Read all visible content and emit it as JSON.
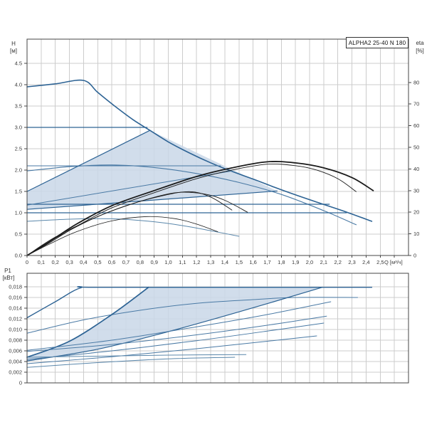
{
  "title": "ALPHA2 25-40 N 180",
  "labels": {
    "h": "H",
    "h_unit": "[м]",
    "eta": "eta",
    "eta_unit": "[%]",
    "p1": "P1",
    "p1_unit": "[кВт]",
    "q": "Q [м³/ч]"
  },
  "colors": {
    "blue_main": "#2d6394",
    "blue_light": "#4a7aa5",
    "blue_pale": "#5a87ab",
    "eta_black": "#1b1b1b",
    "region_fill": "#c9d7e8",
    "grid": "#cccccc",
    "border": "#444444",
    "text": "#3a3a3a"
  },
  "chart_data": [
    {
      "id": "head",
      "type": "line",
      "title": "ALPHA2 25-40 N 180",
      "xlabel": "Q [м³/ч]",
      "ylabel": "H [м]",
      "y2label": "eta [%]",
      "xlim": [
        0,
        2.7
      ],
      "ylim": [
        0,
        5.0667
      ],
      "y2lim": [
        0,
        100
      ],
      "grid": true,
      "show_x_labels": true,
      "x_ticks": [
        [
          0,
          "0"
        ],
        [
          0.1,
          "0,1"
        ],
        [
          0.2,
          "0,2"
        ],
        [
          0.3,
          "0,3"
        ],
        [
          0.4,
          "0,4"
        ],
        [
          0.5,
          "0,5"
        ],
        [
          0.6,
          "0,6"
        ],
        [
          0.7,
          "0,7"
        ],
        [
          0.8,
          "0,8"
        ],
        [
          0.9,
          "0,9"
        ],
        [
          1.0,
          "1,0"
        ],
        [
          1.1,
          "1,1"
        ],
        [
          1.2,
          "1,2"
        ],
        [
          1.3,
          "1,3"
        ],
        [
          1.4,
          "1,4"
        ],
        [
          1.5,
          "1,5"
        ],
        [
          1.6,
          "1,6"
        ],
        [
          1.7,
          "1,7"
        ],
        [
          1.8,
          "1,8"
        ],
        [
          1.9,
          "1,9"
        ],
        [
          2.0,
          "2,0"
        ],
        [
          2.1,
          "2,1"
        ],
        [
          2.2,
          "2,2"
        ],
        [
          2.3,
          "2,3"
        ],
        [
          2.4,
          "2,4"
        ],
        [
          2.5,
          "2,5"
        ]
      ],
      "y_ticks": [
        [
          0,
          "0.0"
        ],
        [
          0.5,
          "0.5"
        ],
        [
          1,
          "1.0"
        ],
        [
          1.5,
          "1.5"
        ],
        [
          2,
          "2.0"
        ],
        [
          2.5,
          "2.5"
        ],
        [
          3,
          "3.0"
        ],
        [
          3.5,
          "3.5"
        ],
        [
          4,
          "4.0"
        ],
        [
          4.5,
          "4.5"
        ]
      ],
      "y2_ticks": [
        [
          0,
          "0"
        ],
        [
          10,
          "10"
        ],
        [
          20,
          "20"
        ],
        [
          30,
          "30"
        ],
        [
          40,
          "40"
        ],
        [
          50,
          "50"
        ],
        [
          60,
          "60"
        ],
        [
          70,
          "70"
        ],
        [
          80,
          "80"
        ]
      ],
      "region": {
        "name": "operating-range-region",
        "points": [
          [
            0,
            1.5
          ],
          [
            0.87,
            2.93
          ],
          [
            1.77,
            1.51
          ],
          [
            0,
            1.08
          ]
        ]
      },
      "series": [
        {
          "name": "speed-3-curve",
          "axis": "y",
          "color": "#2d6394",
          "width": 1.6,
          "points": [
            [
              0,
              3.95
            ],
            [
              0.2,
              4.02
            ],
            [
              0.4,
              4.1
            ],
            [
              0.5,
              3.82
            ],
            [
              0.62,
              3.5
            ],
            [
              0.75,
              3.18
            ],
            [
              0.87,
              2.93
            ],
            [
              1.0,
              2.66
            ],
            [
              1.15,
              2.4
            ],
            [
              1.3,
              2.17
            ],
            [
              1.45,
              1.97
            ],
            [
              1.6,
              1.79
            ],
            [
              1.75,
              1.6
            ],
            [
              1.9,
              1.42
            ],
            [
              2.05,
              1.25
            ],
            [
              2.25,
              1.03
            ],
            [
              2.44,
              0.8
            ]
          ]
        },
        {
          "name": "speed-2-curve",
          "axis": "y",
          "color": "#4a7aa5",
          "width": 1.1,
          "points": [
            [
              0,
              1.98
            ],
            [
              0.3,
              2.08
            ],
            [
              0.6,
              2.12
            ],
            [
              0.9,
              2.06
            ],
            [
              1.2,
              1.92
            ],
            [
              1.5,
              1.71
            ],
            [
              1.8,
              1.43
            ],
            [
              2.1,
              1.05
            ],
            [
              2.33,
              0.72
            ]
          ]
        },
        {
          "name": "speed-1-curve",
          "axis": "y",
          "color": "#5a87ab",
          "width": 1,
          "points": [
            [
              0,
              0.8
            ],
            [
              0.3,
              0.85
            ],
            [
              0.6,
              0.86
            ],
            [
              0.9,
              0.79
            ],
            [
              1.1,
              0.7
            ],
            [
              1.3,
              0.58
            ],
            [
              1.5,
              0.45
            ]
          ]
        },
        {
          "name": "const-pressure-3.0-curve",
          "axis": "y",
          "color": "#2d6394",
          "width": 1.3,
          "points": [
            [
              0,
              3.0
            ],
            [
              0.85,
              3.0
            ]
          ]
        },
        {
          "name": "const-pressure-2.1-curve",
          "axis": "y",
          "color": "#4a7aa5",
          "width": 1,
          "points": [
            [
              0,
              2.1
            ],
            [
              1.37,
              2.1
            ]
          ]
        },
        {
          "name": "const-pressure-1.2-curve",
          "axis": "y",
          "color": "#2d6394",
          "width": 1.2,
          "points": [
            [
              0,
              1.2
            ],
            [
              2.14,
              1.2
            ]
          ]
        },
        {
          "name": "const-pressure-1.0-curve",
          "axis": "y",
          "color": "#2d6394",
          "width": 1.3,
          "points": [
            [
              0,
              1.0
            ],
            [
              2.26,
              1.0
            ]
          ]
        },
        {
          "name": "prop-pressure-max-curve",
          "axis": "y",
          "color": "#2d6394",
          "width": 1.2,
          "points": [
            [
              0,
              1.5
            ],
            [
              0.87,
              2.93
            ]
          ]
        },
        {
          "name": "prop-pressure-mid-curve",
          "axis": "y",
          "color": "#4a7aa5",
          "width": 1,
          "points": [
            [
              0,
              1.18
            ],
            [
              1.45,
              1.98
            ]
          ]
        },
        {
          "name": "prop-pressure-min-curve",
          "axis": "y",
          "color": "#2d6394",
          "width": 1.2,
          "points": [
            [
              0,
              1.08
            ],
            [
              1.77,
              1.51
            ]
          ]
        },
        {
          "name": "eta-speed3-curve",
          "axis": "y2",
          "color": "#1b1b1b",
          "width": 1.8,
          "points": [
            [
              0,
              0
            ],
            [
              0.15,
              6
            ],
            [
              0.35,
              14.5
            ],
            [
              0.6,
              23
            ],
            [
              0.9,
              30
            ],
            [
              1.2,
              36.5
            ],
            [
              1.45,
              40.5
            ],
            [
              1.7,
              43.3
            ],
            [
              1.9,
              42.8
            ],
            [
              2.1,
              40.5
            ],
            [
              2.3,
              36
            ],
            [
              2.45,
              30
            ]
          ]
        },
        {
          "name": "eta-speed3b-curve",
          "axis": "y2",
          "color": "#1b1b1b",
          "width": 0.9,
          "points": [
            [
              0,
              0
            ],
            [
              0.15,
              5.5
            ],
            [
              0.35,
              13.5
            ],
            [
              0.6,
              22
            ],
            [
              0.9,
              29
            ],
            [
              1.2,
              35.5
            ],
            [
              1.45,
              39.5
            ],
            [
              1.7,
              42.2
            ],
            [
              1.9,
              41.5
            ],
            [
              2.05,
              39.5
            ],
            [
              2.2,
              35.5
            ],
            [
              2.33,
              29.5
            ]
          ]
        },
        {
          "name": "eta-speed2-curve",
          "axis": "y2",
          "color": "#1b1b1b",
          "width": 0.9,
          "points": [
            [
              0,
              0
            ],
            [
              0.2,
              8
            ],
            [
              0.45,
              16.5
            ],
            [
              0.7,
              23
            ],
            [
              0.95,
              27.5
            ],
            [
              1.15,
              29.5
            ],
            [
              1.3,
              27
            ],
            [
              1.45,
              21
            ]
          ]
        },
        {
          "name": "eta-speed2b-curve",
          "axis": "y2",
          "color": "#1b1b1b",
          "width": 0.9,
          "points": [
            [
              0,
              0
            ],
            [
              0.2,
              8.5
            ],
            [
              0.5,
              18
            ],
            [
              0.8,
              25
            ],
            [
              1.05,
              29
            ],
            [
              1.25,
              28.5
            ],
            [
              1.4,
              25.5
            ],
            [
              1.56,
              20
            ]
          ]
        },
        {
          "name": "eta-speed1-curve",
          "axis": "y2",
          "color": "#1b1b1b",
          "width": 0.8,
          "points": [
            [
              0,
              0
            ],
            [
              0.15,
              5
            ],
            [
              0.35,
              11
            ],
            [
              0.6,
              16
            ],
            [
              0.85,
              18
            ],
            [
              1.05,
              17
            ],
            [
              1.2,
              14.5
            ],
            [
              1.35,
              11
            ]
          ]
        }
      ]
    },
    {
      "id": "power",
      "type": "line",
      "title": "",
      "xlabel": "",
      "ylabel": "P1 [кВт]",
      "xlim": [
        0,
        2.7
      ],
      "ylim": [
        0,
        0.02053
      ],
      "grid": true,
      "show_x_labels": false,
      "x_ticks": [],
      "y_ticks": [
        [
          0,
          "0"
        ],
        [
          0.002,
          "0,002"
        ],
        [
          0.004,
          "0,004"
        ],
        [
          0.006,
          "0,006"
        ],
        [
          0.008,
          "0,008"
        ],
        [
          0.01,
          "0,010"
        ],
        [
          0.012,
          "0,012"
        ],
        [
          0.014,
          "0,014"
        ],
        [
          0.016,
          "0,016"
        ],
        [
          0.018,
          "0,018"
        ]
      ],
      "y2_ticks": [],
      "region": {
        "name": "power-operating-range-region",
        "points": [
          [
            0,
            0.0048
          ],
          [
            0.3,
            0.0078
          ],
          [
            0.6,
            0.0128
          ],
          [
            0.86,
            0.0179
          ],
          [
            2.09,
            0.0179
          ],
          [
            1.5,
            0.0133
          ],
          [
            1.0,
            0.0096
          ],
          [
            0.5,
            0.0063
          ],
          [
            0,
            0.0041
          ]
        ]
      },
      "series": [
        {
          "name": "power-speed-3-curve",
          "axis": "y",
          "color": "#2d6394",
          "width": 1.4,
          "points": [
            [
              0,
              0.0122
            ],
            [
              0.2,
              0.0152
            ],
            [
              0.38,
              0.0178
            ],
            [
              0.55,
              0.0179
            ],
            [
              2.44,
              0.0179
            ]
          ]
        },
        {
          "name": "power-speed-2-curve",
          "axis": "y",
          "color": "#4a7aa5",
          "width": 1,
          "points": [
            [
              0,
              0.0093
            ],
            [
              0.4,
              0.0118
            ],
            [
              0.8,
              0.0136
            ],
            [
              1.2,
              0.0149
            ],
            [
              1.6,
              0.0156
            ],
            [
              1.9,
              0.016
            ],
            [
              2.34,
              0.016
            ]
          ]
        },
        {
          "name": "power-prop-max-curve",
          "axis": "y",
          "color": "#2d6394",
          "width": 1.7,
          "points": [
            [
              0,
              0.0048
            ],
            [
              0.3,
              0.0078
            ],
            [
              0.6,
              0.0128
            ],
            [
              0.86,
              0.0179
            ]
          ]
        },
        {
          "name": "power-autoadapt-upper-curve",
          "axis": "y",
          "color": "#2d6394",
          "width": 1.2,
          "points": [
            [
              0,
              0.0041
            ],
            [
              0.5,
              0.0063
            ],
            [
              1.0,
              0.0096
            ],
            [
              1.5,
              0.0133
            ],
            [
              2.09,
              0.0179
            ]
          ]
        },
        {
          "name": "power-mid1-curve",
          "axis": "y",
          "color": "#4a7aa5",
          "width": 1,
          "points": [
            [
              0,
              0.0061
            ],
            [
              0.6,
              0.008
            ],
            [
              1.2,
              0.0105
            ],
            [
              1.7,
              0.0128
            ],
            [
              2.15,
              0.0152
            ]
          ]
        },
        {
          "name": "power-mid2-curve",
          "axis": "y",
          "color": "#4a7aa5",
          "width": 1,
          "points": [
            [
              0,
              0.0059
            ],
            [
              0.6,
              0.0072
            ],
            [
              1.2,
              0.009
            ],
            [
              1.7,
              0.0108
            ],
            [
              2.12,
              0.0125
            ]
          ]
        },
        {
          "name": "power-mid3-curve",
          "axis": "y",
          "color": "#4a7aa5",
          "width": 1,
          "points": [
            [
              0,
              0.0044
            ],
            [
              0.6,
              0.006
            ],
            [
              1.2,
              0.0079
            ],
            [
              1.7,
              0.0097
            ],
            [
              2.1,
              0.0112
            ]
          ]
        },
        {
          "name": "power-mid4-curve",
          "axis": "y",
          "color": "#4a7aa5",
          "width": 1,
          "points": [
            [
              0,
              0.0036
            ],
            [
              0.6,
              0.0049
            ],
            [
              1.2,
              0.0064
            ],
            [
              1.7,
              0.0078
            ],
            [
              2.05,
              0.0088
            ]
          ]
        },
        {
          "name": "power-speed-1a-curve",
          "axis": "y",
          "color": "#5a87ab",
          "width": 1,
          "points": [
            [
              0,
              0.0048
            ],
            [
              0.5,
              0.005
            ],
            [
              1.0,
              0.0052
            ],
            [
              1.55,
              0.0053
            ]
          ]
        },
        {
          "name": "power-speed-1b-curve",
          "axis": "y",
          "color": "#5a87ab",
          "width": 1,
          "points": [
            [
              0,
              0.0029
            ],
            [
              0.5,
              0.0038
            ],
            [
              1.0,
              0.0045
            ],
            [
              1.47,
              0.0048
            ]
          ]
        }
      ]
    }
  ]
}
